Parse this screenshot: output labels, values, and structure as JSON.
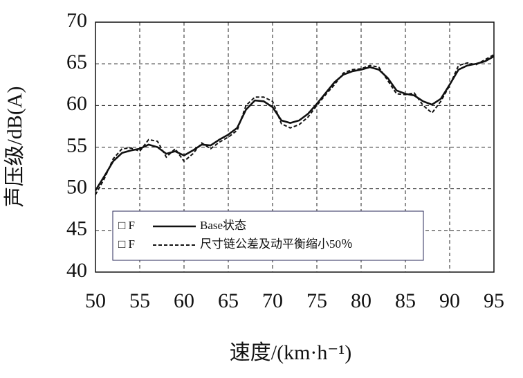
{
  "chart_data": {
    "type": "line",
    "x_label": "速度/(km·h⁻¹)",
    "y_label": "声压级/dB(A)",
    "x": [
      50,
      51,
      52,
      53,
      54,
      55,
      56,
      57,
      58,
      59,
      60,
      61,
      62,
      63,
      64,
      65,
      66,
      67,
      68,
      69,
      70,
      71,
      72,
      73,
      74,
      75,
      76,
      77,
      78,
      79,
      80,
      81,
      82,
      83,
      84,
      85,
      86,
      87,
      88,
      89,
      90,
      91,
      92,
      93,
      94,
      95
    ],
    "series": [
      {
        "name": "Base状态",
        "color": "#111111",
        "style": "solid",
        "values": [
          49.8,
          51.5,
          53.3,
          54.3,
          54.6,
          54.8,
          55.3,
          55.0,
          54.2,
          54.5,
          54.0,
          54.6,
          55.3,
          55.2,
          55.9,
          56.5,
          57.3,
          59.5,
          60.6,
          60.5,
          59.8,
          58.2,
          57.9,
          58.2,
          59.0,
          60.2,
          61.5,
          62.8,
          63.7,
          64.1,
          64.3,
          64.6,
          64.3,
          63.3,
          61.8,
          61.4,
          61.2,
          60.5,
          60.1,
          60.8,
          62.5,
          64.3,
          64.8,
          65.0,
          65.3,
          65.9
        ]
      },
      {
        "name": "尺寸链公差及动平衡缩小50％",
        "color": "#111111",
        "style": "dashed",
        "values": [
          49.3,
          51.2,
          53.6,
          54.8,
          54.9,
          54.5,
          55.9,
          55.7,
          53.8,
          54.8,
          53.3,
          54.2,
          55.5,
          54.8,
          55.6,
          56.2,
          57.0,
          60.0,
          61.0,
          61.0,
          60.5,
          57.8,
          57.3,
          57.7,
          58.6,
          60.0,
          61.3,
          62.5,
          63.9,
          64.3,
          64.4,
          64.8,
          64.6,
          63.0,
          61.4,
          61.3,
          61.5,
          60.0,
          59.1,
          60.5,
          62.4,
          64.8,
          65.1,
          64.9,
          65.5,
          66.1
        ]
      }
    ],
    "legend_marker": "□ F",
    "xlim": [
      50,
      95
    ],
    "xticks": [
      50,
      55,
      60,
      65,
      70,
      75,
      80,
      85,
      90,
      95
    ],
    "ylim": [
      40,
      70
    ],
    "yticks": [
      40,
      45,
      50,
      55,
      60,
      65,
      70
    ],
    "grid": true,
    "legend": "lower left"
  }
}
